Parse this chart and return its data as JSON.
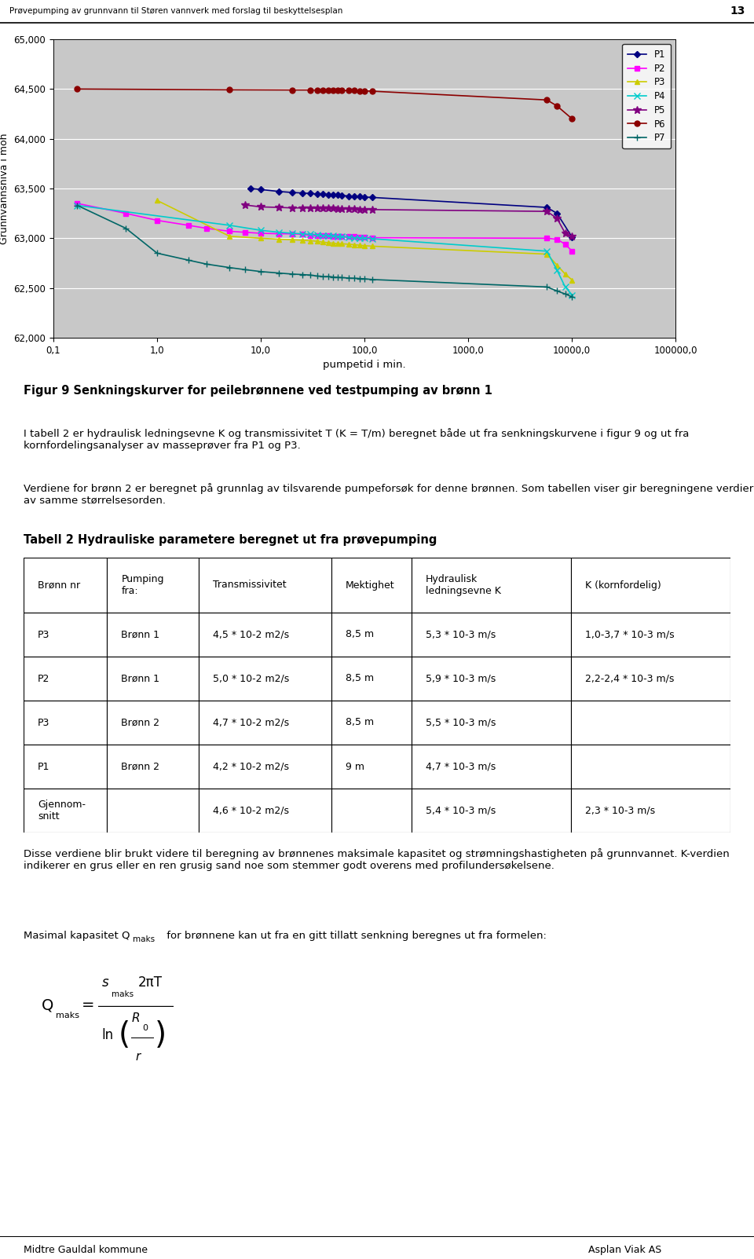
{
  "header_text": "Prøvepumping av grunnvann til Støren vannverk med forslag til beskyttelsesplan",
  "page_num": "13",
  "xlabel": "pumpetid i min.",
  "ylabel": "Grunnvannsnivå i moh",
  "xlim": [
    0.1,
    100000.0
  ],
  "ylim": [
    62000,
    65000
  ],
  "yticks": [
    62000,
    62500,
    63000,
    63500,
    64000,
    64500,
    65000
  ],
  "ytick_labels": [
    "62,000",
    "62,500",
    "63,000",
    "63,500",
    "64,000",
    "64,500",
    "65,000"
  ],
  "xtick_vals": [
    0.1,
    1.0,
    10.0,
    100.0,
    1000.0,
    10000.0,
    100000.0
  ],
  "xtick_labels": [
    "0,1",
    "1,0",
    "10,0",
    "100,0",
    "1000,0",
    "10000,0",
    "100000,0"
  ],
  "plot_bg_color": "#C8C8C8",
  "series": {
    "P1": {
      "color": "#000080",
      "marker": "D",
      "markersize": 4,
      "linewidth": 1.2,
      "x": [
        8,
        10,
        15,
        20,
        25,
        30,
        35,
        40,
        45,
        50,
        55,
        60,
        70,
        80,
        90,
        100,
        120,
        5760,
        7200,
        10080
      ],
      "y": [
        63500,
        63490,
        63470,
        63460,
        63455,
        63450,
        63445,
        63445,
        63440,
        63435,
        63435,
        63430,
        63425,
        63420,
        63420,
        63415,
        63410,
        63310,
        63250,
        63010
      ]
    },
    "P2": {
      "color": "#FF00FF",
      "marker": "s",
      "markersize": 4,
      "linewidth": 1.2,
      "x": [
        0.17,
        0.5,
        1.0,
        2.0,
        3.0,
        5.0,
        7.0,
        10,
        15,
        20,
        25,
        30,
        35,
        40,
        45,
        50,
        55,
        60,
        70,
        80,
        90,
        100,
        120,
        5760,
        7200,
        8640,
        10080
      ],
      "y": [
        63350,
        63250,
        63180,
        63130,
        63100,
        63070,
        63060,
        63050,
        63045,
        63045,
        63040,
        63030,
        63025,
        63025,
        63025,
        63020,
        63020,
        63015,
        63015,
        63015,
        63010,
        63008,
        63005,
        63000,
        62990,
        62940,
        62870
      ]
    },
    "P3": {
      "color": "#CCCC00",
      "marker": "^",
      "markersize": 4,
      "linewidth": 1.2,
      "x": [
        1.0,
        5.0,
        10.0,
        15.0,
        20.0,
        25.0,
        30.0,
        35.0,
        40.0,
        45.0,
        50.0,
        55.0,
        60.0,
        70.0,
        80.0,
        90.0,
        100.0,
        120.0,
        5760,
        7200,
        8640,
        10080
      ],
      "y": [
        63380,
        63020,
        63000,
        62990,
        62985,
        62980,
        62975,
        62970,
        62960,
        62955,
        62950,
        62945,
        62945,
        62940,
        62935,
        62930,
        62925,
        62920,
        62840,
        62730,
        62640,
        62580
      ]
    },
    "P4": {
      "color": "#00CCCC",
      "marker": "x",
      "markersize": 6,
      "linewidth": 1.2,
      "x": [
        0.17,
        5.0,
        10.0,
        15.0,
        20.0,
        25.0,
        30.0,
        35.0,
        40.0,
        45.0,
        50.0,
        55.0,
        60.0,
        70.0,
        80.0,
        90.0,
        100.0,
        120.0,
        5760,
        7200,
        8640,
        10080
      ],
      "y": [
        63330,
        63130,
        63080,
        63060,
        63050,
        63045,
        63040,
        63035,
        63030,
        63025,
        63025,
        63020,
        63015,
        63010,
        63005,
        63002,
        63000,
        62995,
        62870,
        62680,
        62510,
        62430
      ]
    },
    "P5": {
      "color": "#800080",
      "marker": "*",
      "markersize": 7,
      "linewidth": 1.2,
      "x": [
        7.0,
        10.0,
        15.0,
        20.0,
        25.0,
        30.0,
        35.0,
        40.0,
        45.0,
        50.0,
        55.0,
        60.0,
        70.0,
        80.0,
        90.0,
        100.0,
        120.0,
        5760,
        7200,
        8640,
        10080
      ],
      "y": [
        63335,
        63315,
        63310,
        63305,
        63305,
        63305,
        63300,
        63300,
        63300,
        63300,
        63295,
        63295,
        63295,
        63292,
        63290,
        63290,
        63288,
        63270,
        63200,
        63050,
        63020
      ]
    },
    "P6": {
      "color": "#8B0000",
      "marker": "o",
      "markersize": 5,
      "linewidth": 1.2,
      "x": [
        0.17,
        5.0,
        20.0,
        30.0,
        35.0,
        40.0,
        45.0,
        50.0,
        55.0,
        60.0,
        70.0,
        80.0,
        90.0,
        100.0,
        120.0,
        5760,
        7200,
        10080
      ],
      "y": [
        64500,
        64492,
        64490,
        64490,
        64490,
        64488,
        64487,
        64487,
        64486,
        64486,
        64485,
        64483,
        64482,
        64480,
        64478,
        64390,
        64330,
        64200
      ]
    },
    "P7": {
      "color": "#006666",
      "marker": "+",
      "markersize": 6,
      "linewidth": 1.2,
      "x": [
        0.17,
        0.5,
        1.0,
        2.0,
        3.0,
        5.0,
        7.0,
        10.0,
        15.0,
        20.0,
        25.0,
        30.0,
        35.0,
        40.0,
        45.0,
        50.0,
        55.0,
        60.0,
        70.0,
        80.0,
        90.0,
        100.0,
        120.0,
        5760,
        7200,
        8640,
        10080
      ],
      "y": [
        63330,
        63100,
        62850,
        62780,
        62740,
        62705,
        62685,
        62665,
        62650,
        62640,
        62635,
        62630,
        62620,
        62615,
        62615,
        62610,
        62607,
        62605,
        62600,
        62598,
        62595,
        62592,
        62585,
        62510,
        62470,
        62440,
        62410
      ]
    }
  },
  "footer_left": "Midtre Gauldal kommune",
  "footer_right": "Asplan Viak AS",
  "fig_caption": "Figur 9 Senkningskurver for peilebrønnene ved testpumping av brønn 1",
  "body_text1": "I tabell 2 er hydraulisk ledningsevne K og transmissivitet T (K = T/m) beregnet både ut fra senkningskurvene i figur 9 og ut fra kornfordelingsanalyser av masseprøver fra P1 og P3.",
  "body_text2": "Verdiene for brønn 2 er beregnet på grunnlag av tilsvarende pumpeforsøk for denne brønnen. Som tabellen viser gir beregningene verdier av samme størrelsesorden.",
  "table_title": "Tabell 2 Hydrauliske parametere beregnet ut fra prøvepumping",
  "table_headers": [
    "Brønn nr",
    "Pumping\nfra:",
    "Transmissivitet",
    "Mektighet",
    "Hydraulisk\nledningsevne K",
    "K (kornfordelig)"
  ],
  "table_rows": [
    [
      "P3",
      "Brønn 1",
      "4,5 * 10-2 m2/s",
      "8,5 m",
      "5,3 * 10-3 m/s",
      "1,0-3,7 * 10-3 m/s"
    ],
    [
      "P2",
      "Brønn 1",
      "5,0 * 10-2 m2/s",
      "8,5 m",
      "5,9 * 10-3 m/s",
      "2,2-2,4 * 10-3 m/s"
    ],
    [
      "P3",
      "Brønn 2",
      "4,7 * 10-2 m2/s",
      "8,5 m",
      "5,5 * 10-3 m/s",
      ""
    ],
    [
      "P1",
      "Brønn 2",
      "4,2 * 10-2 m2/s",
      "9 m",
      "4,7 * 10-3 m/s",
      ""
    ],
    [
      "Gjennom-\nsnitt",
      "",
      "4,6 * 10-2 m2/s",
      "",
      "5,4 * 10-3 m/s",
      "2,3 * 10-3 m/s"
    ]
  ],
  "post_table_text": "Disse verdiene blir brukt videre til beregning av brønnenes maksimale kapasitet og strømningshastigheten på grunnvannet. K-verdien indikerer en grus eller en ren grusig sand noe som stemmer godt overens med profilundersøkelsene.",
  "qmaks_text": "Masimal kapasitet Q",
  "qmaks_sub": "maks",
  "qmaks_text2": " for brønnene kan ut fra en gitt tillatt senkning beregnes ut fra formelen:"
}
